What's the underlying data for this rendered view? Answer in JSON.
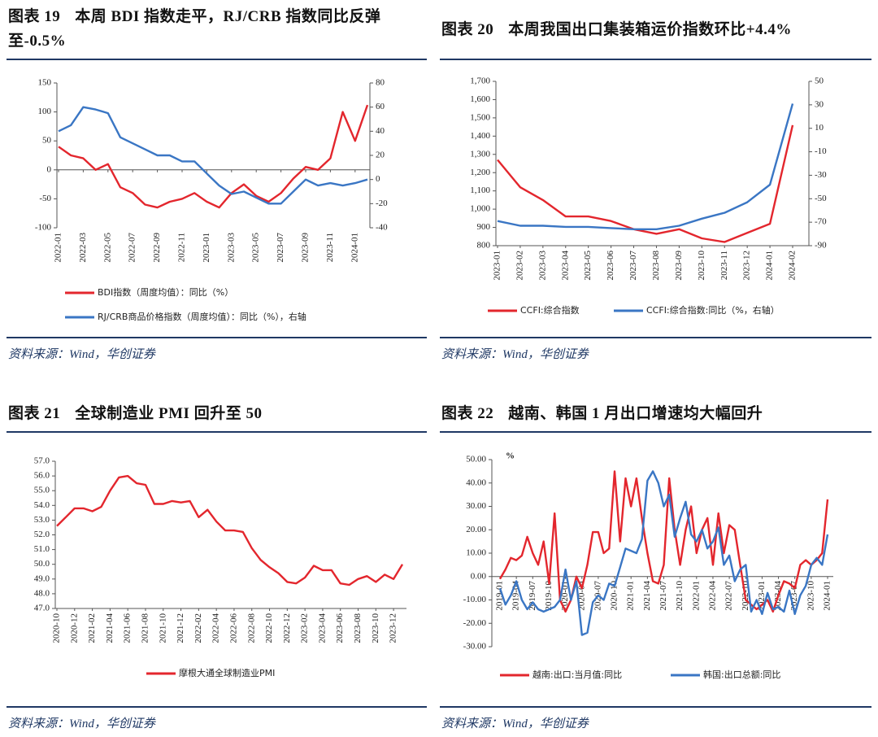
{
  "chart_data": [
    {
      "type": "line",
      "label": "图表 19",
      "title": "本周 BDI 指数走平，RJ/CRB 指数同比反弹至-0.5%",
      "source": "资料来源：Wind，华创证券",
      "categories": [
        "2022-01",
        null,
        "2022-03",
        null,
        "2022-05",
        null,
        "2022-07",
        null,
        "2022-09",
        null,
        "2022-11",
        null,
        "2023-01",
        null,
        "2023-03",
        null,
        "2023-05",
        null,
        "2023-07",
        null,
        "2023-09",
        null,
        "2023-11",
        null,
        "2024-01",
        null
      ],
      "ylim": [
        -100,
        150
      ],
      "yticks": [
        -100,
        -50,
        0,
        50,
        100,
        150
      ],
      "y2lim": [
        -40,
        80
      ],
      "y2ticks": [
        -40,
        -20,
        0,
        20,
        40,
        60,
        80
      ],
      "series": [
        {
          "name": "BDI指数（周度均值）：同比（%）",
          "color": "#e3262d",
          "values": [
            40,
            25,
            20,
            0,
            10,
            -30,
            -40,
            -60,
            -65,
            -55,
            -50,
            -40,
            -55,
            -65,
            -40,
            -25,
            -45,
            -55,
            -40,
            -15,
            5,
            0,
            20,
            100,
            50,
            112
          ]
        },
        {
          "name": "RJ/CRB商品价格指数（周度均值）：同比（%），右轴",
          "color": "#3a76c4",
          "axis": "y2",
          "values": [
            40,
            45,
            60,
            58,
            55,
            35,
            30,
            25,
            20,
            20,
            15,
            15,
            5,
            -5,
            -12,
            -10,
            -15,
            -20,
            -20,
            -10,
            0,
            -5,
            -3,
            -5,
            -3,
            0
          ]
        }
      ]
    },
    {
      "type": "line",
      "label": "图表 20",
      "title": "本周我国出口集装箱运价指数环比+4.4%",
      "source": "资料来源：Wind，华创证券",
      "categories": [
        "2023-01",
        "2023-02",
        "2023-03",
        "2023-04",
        "2023-05",
        "2023-06",
        "2023-07",
        "2023-08",
        "2023-09",
        "2023-10",
        "2023-11",
        "2023-12",
        "2024-01",
        "2024-02"
      ],
      "ylim": [
        800,
        1700
      ],
      "yticks": [
        800,
        900,
        {
          "value": 1000,
          "label": "1,000"
        },
        {
          "value": 1100,
          "label": "1,100"
        },
        {
          "value": 1200,
          "label": "1,200"
        },
        {
          "value": 1300,
          "label": "1,300"
        },
        {
          "value": 1400,
          "label": "1,400"
        },
        {
          "value": 1500,
          "label": "1,500"
        },
        {
          "value": 1600,
          "label": "1,600"
        },
        {
          "value": 1700,
          "label": "1,700"
        }
      ],
      "y2lim": [
        -90,
        50
      ],
      "y2ticks": [
        -90,
        -70,
        -50,
        -30,
        -10,
        10,
        30,
        50
      ],
      "series": [
        {
          "name": "CCFI:综合指数",
          "color": "#e3262d",
          "values": [
            1270,
            1120,
            1050,
            960,
            960,
            935,
            890,
            865,
            890,
            840,
            820,
            870,
            920,
            1460
          ]
        },
        {
          "name": "CCFI:综合指数:同比（%，右轴）",
          "color": "#3a76c4",
          "axis": "y2",
          "values": [
            -69,
            -73,
            -73,
            -74,
            -74,
            -75,
            -76,
            -76,
            -73,
            -67,
            -62,
            -53,
            -38,
            31
          ]
        }
      ]
    },
    {
      "type": "line",
      "label": "图表 21",
      "title": "全球制造业 PMI 回升至 50",
      "source": "资料来源：Wind，华创证券",
      "categories": [
        "2020-10",
        null,
        "2020-12",
        null,
        "2021-02",
        null,
        "2021-04",
        null,
        "2021-06",
        null,
        "2021-08",
        null,
        "2021-10",
        null,
        "2021-12",
        null,
        "2022-02",
        null,
        "2022-04",
        null,
        "2022-06",
        null,
        "2022-08",
        null,
        "2022-10",
        null,
        "2022-12",
        null,
        "2023-02",
        null,
        "2023-04",
        null,
        "2023-06",
        null,
        "2023-08",
        null,
        "2023-10",
        null,
        "2023-12",
        null
      ],
      "ylim": [
        47,
        57
      ],
      "yticks": [
        {
          "value": 47,
          "label": "47.0"
        },
        {
          "value": 48,
          "label": "48.0"
        },
        {
          "value": 49,
          "label": "49.0"
        },
        {
          "value": 50,
          "label": "50.0"
        },
        {
          "value": 51,
          "label": "51.0"
        },
        {
          "value": 52,
          "label": "52.0"
        },
        {
          "value": 53,
          "label": "53.0"
        },
        {
          "value": 54,
          "label": "54.0"
        },
        {
          "value": 55,
          "label": "55.0"
        },
        {
          "value": 56,
          "label": "56.0"
        },
        {
          "value": 57,
          "label": "57.0"
        }
      ],
      "series": [
        {
          "name": "摩根大通全球制造业PMI",
          "color": "#e3262d",
          "values": [
            52.6,
            53.2,
            53.8,
            53.8,
            53.6,
            53.9,
            55.0,
            55.9,
            56.0,
            55.5,
            55.4,
            54.1,
            54.1,
            54.3,
            54.2,
            54.3,
            53.2,
            53.7,
            52.9,
            52.3,
            52.3,
            52.2,
            51.1,
            50.3,
            49.8,
            49.4,
            48.8,
            48.7,
            49.1,
            49.9,
            49.6,
            49.6,
            48.7,
            48.6,
            49.0,
            49.2,
            48.8,
            49.3,
            49.0,
            50.0
          ]
        }
      ]
    },
    {
      "type": "line",
      "label": "图表 22",
      "title": "越南、韩国 1 月出口增速均大幅回升",
      "source": "资料来源：Wind，华创证券",
      "y_unit": "%",
      "categories": [
        "2019-01",
        null,
        null,
        "2019-04",
        null,
        null,
        "2019-07",
        null,
        null,
        "2019-10",
        null,
        null,
        "2020-01",
        null,
        null,
        "2020-04",
        null,
        null,
        "2020-07",
        null,
        null,
        "2020-10",
        null,
        null,
        "2021-01",
        null,
        null,
        "2021-04",
        null,
        null,
        "2021-07",
        null,
        null,
        "2021-10",
        null,
        null,
        "2022-01",
        null,
        null,
        "2022-04",
        null,
        null,
        "2022-07",
        null,
        null,
        "2022-10",
        null,
        null,
        "2023-01",
        null,
        null,
        "2023-04",
        null,
        null,
        "2023-07",
        null,
        null,
        "2023-10",
        null,
        null,
        "2024-01"
      ],
      "ylim": [
        -30,
        50
      ],
      "yticks": [
        {
          "value": -30,
          "label": "-30.00"
        },
        {
          "value": -20,
          "label": "-20.00"
        },
        {
          "value": -10,
          "label": "-10.00"
        },
        {
          "value": 0,
          "label": "0.00"
        },
        {
          "value": 10,
          "label": "10.00"
        },
        {
          "value": 20,
          "label": "20.00"
        },
        {
          "value": 30,
          "label": "30.00"
        },
        {
          "value": 40,
          "label": "40.00"
        },
        {
          "value": 50,
          "label": "50.00"
        }
      ],
      "series": [
        {
          "name": "越南:出口:当月值:同比",
          "color": "#e3262d",
          "values": [
            -1,
            3,
            8,
            7,
            9,
            17,
            10,
            5,
            15,
            -3,
            27,
            -10,
            -15,
            -10,
            0,
            -5,
            5,
            19,
            19,
            10,
            12,
            45,
            15,
            42,
            30,
            42,
            25,
            10,
            -2,
            -3,
            5,
            42,
            20,
            5,
            20,
            30,
            10,
            20,
            25,
            5,
            27,
            10,
            22,
            20,
            5,
            -10,
            -12,
            -14,
            -12,
            -10,
            -15,
            -8,
            -2,
            -3,
            -5,
            5,
            7,
            5,
            7,
            10,
            33
          ]
        },
        {
          "name": "韩国:出口总额:同比",
          "color": "#3a76c4",
          "values": [
            -5,
            -12,
            -8,
            -2,
            -10,
            -14,
            -11,
            -14,
            -15,
            -14,
            -13,
            -10,
            3,
            -10,
            -2,
            -25,
            -24,
            -11,
            -8,
            -10,
            -3,
            -4,
            4,
            12,
            11,
            10,
            16,
            41,
            45,
            40,
            30,
            35,
            17,
            25,
            32,
            18,
            15,
            20,
            12,
            15,
            21,
            5,
            9,
            -2,
            3,
            5,
            -15,
            -10,
            -16,
            -7,
            -14,
            -13,
            -15,
            -6,
            -16,
            -8,
            -4,
            5,
            8,
            5,
            18
          ]
        }
      ]
    }
  ]
}
